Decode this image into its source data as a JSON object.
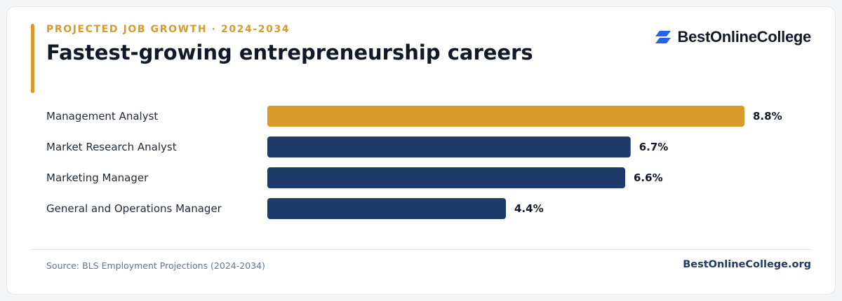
{
  "header": {
    "eyebrow": "PROJECTED JOB GROWTH · 2024-2034",
    "title": "Fastest-growing entrepreneurship careers"
  },
  "brand": {
    "name": "BestOnlineCollege",
    "logo_icon": "stacked-parallelogram-logo-icon"
  },
  "footer": {
    "source": "Source: BLS Employment Projections (2024-2034)",
    "site": "BestOnlineCollege.org"
  },
  "colors": {
    "accent": "#d99a29",
    "bar_default": "#1e3a6b",
    "brand_logo": "#2563eb"
  },
  "chart_data": {
    "type": "bar",
    "orientation": "horizontal",
    "categories": [
      "Management Analyst",
      "Market Research Analyst",
      "Marketing Manager",
      "General and Operations Manager"
    ],
    "values": [
      8.8,
      6.7,
      6.6,
      4.4
    ],
    "value_labels": [
      "8.8%",
      "6.7%",
      "6.6%",
      "4.4%"
    ],
    "highlight_index": 0,
    "xlim": [
      0,
      8.8
    ],
    "grid": false,
    "legend": "none"
  }
}
